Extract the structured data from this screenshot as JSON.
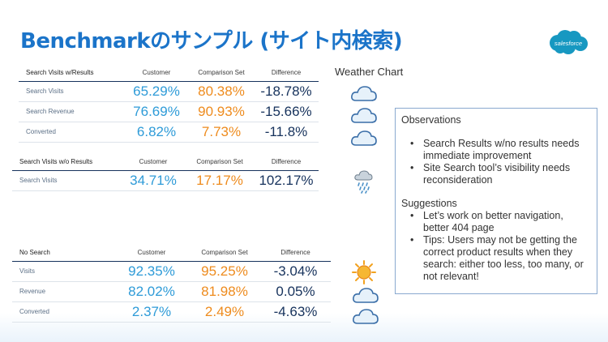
{
  "title": "Benchmarkのサンプル (サイト内検索)",
  "logo_text": "salesforce",
  "weather_title": "Weather Chart",
  "tables": [
    {
      "heading": "Search Visits w/Results",
      "columns": [
        "Customer",
        "Comparison Set",
        "Difference"
      ],
      "rows": [
        {
          "label": "Search Visits",
          "customer": "65.29%",
          "comparison": "80.38%",
          "difference": "-18.78%",
          "weather": "cloudy-icon"
        },
        {
          "label": "Search Revenue",
          "customer": "76.69%",
          "comparison": "90.93%",
          "difference": "-15.66%",
          "weather": "cloudy-icon"
        },
        {
          "label": "Converted",
          "customer": "6.82%",
          "comparison": "7.73%",
          "difference": "-11.8%",
          "weather": "cloudy-icon"
        }
      ]
    },
    {
      "heading": "Search Visits w/o Results",
      "columns": [
        "Customer",
        "Comparison Set",
        "Difference"
      ],
      "rows": [
        {
          "label": "Search Visits",
          "customer": "34.71%",
          "comparison": "17.17%",
          "difference": "102.17%",
          "weather": "rain-icon"
        }
      ]
    },
    {
      "heading": "No Search",
      "columns": [
        "Customer",
        "Comparison Set",
        "Difference"
      ],
      "rows": [
        {
          "label": "Visits",
          "customer": "92.35%",
          "comparison": "95.25%",
          "difference": "-3.04%",
          "weather": "sun-icon"
        },
        {
          "label": "Revenue",
          "customer": "82.02%",
          "comparison": "81.98%",
          "difference": "0.05%",
          "weather": "cloudy-icon"
        },
        {
          "label": "Converted",
          "customer": "2.37%",
          "comparison": "2.49%",
          "difference": "-4.63%",
          "weather": "cloudy-icon"
        }
      ]
    }
  ],
  "observations": {
    "heading": "Observations",
    "items": [
      "Search Results w/no results needs immediate improvement",
      "Site Search tool’s visibility needs reconsideration"
    ],
    "suggestions_heading": "Suggestions",
    "suggestions": [
      "Let’s work on better navigation, better 404 page",
      "Tips: Users may not be getting the correct product results when they search: either too less, too many, or not relevant!"
    ]
  },
  "colors": {
    "title": "#1b74c9",
    "customer": "#2e9bd8",
    "comparison": "#ee8b1d",
    "difference": "#16325c",
    "logo": "#1798c1"
  }
}
